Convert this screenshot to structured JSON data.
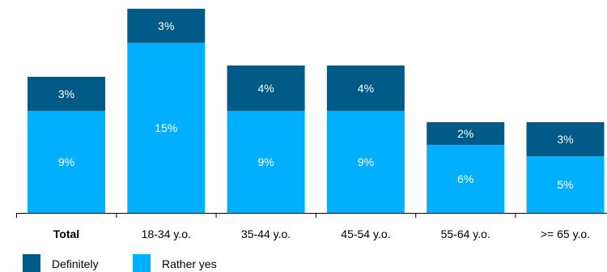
{
  "chart_data": {
    "type": "bar",
    "stacked": true,
    "categories": [
      "Total",
      "18-34 y.o.",
      "35-44 y.o.",
      "45-54 y.o.",
      "55-64 y.o.",
      ">= 65 y.o."
    ],
    "bold_categories": [
      "Total"
    ],
    "series": [
      {
        "name": "Rather yes",
        "color": "#00b0ff",
        "values": [
          9,
          15,
          9,
          9,
          6,
          5
        ],
        "labels": [
          "9%",
          "15%",
          "9%",
          "9%",
          "6%",
          "5%"
        ]
      },
      {
        "name": "Definitely",
        "color": "#005a87",
        "values": [
          3,
          3,
          4,
          4,
          2,
          3
        ],
        "labels": [
          "3%",
          "3%",
          "4%",
          "4%",
          "2%",
          "3%"
        ]
      }
    ],
    "legend_order": [
      "Definitely",
      "Rather yes"
    ],
    "legend_position": "bottom-left",
    "ylim": [
      0,
      18.2
    ],
    "grid": false
  }
}
